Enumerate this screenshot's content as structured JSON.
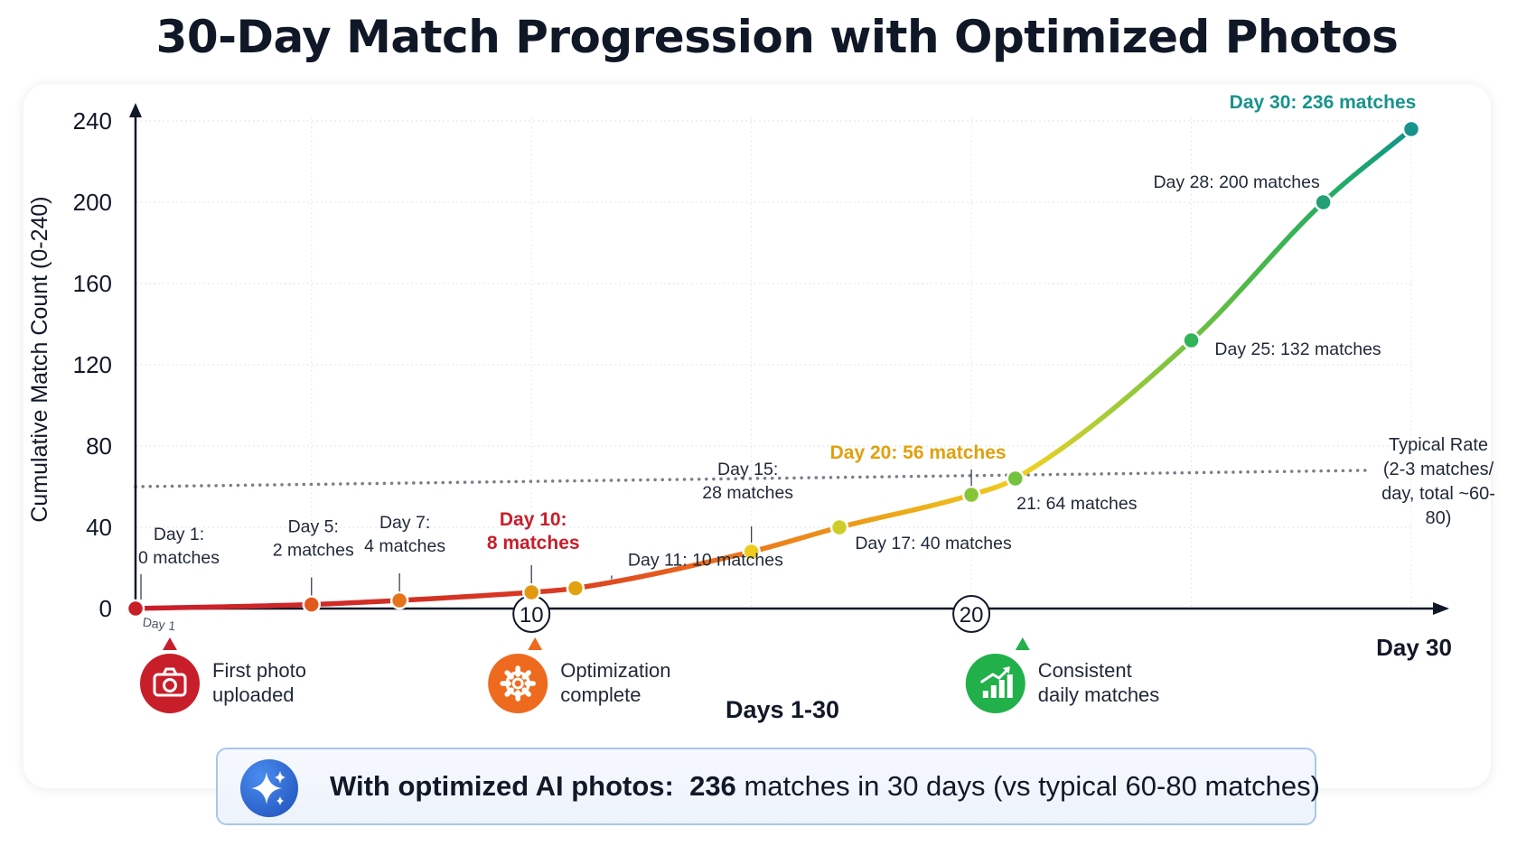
{
  "title": "30-Day Match Progression with Optimized Photos",
  "chart_data": {
    "type": "line",
    "title": "30-Day Match Progression with Optimized Photos",
    "xlabel": "Days 1-30",
    "ylabel": "Cumulative Match Count (0-240)",
    "xlim": [
      1,
      30
    ],
    "ylim": [
      0,
      240
    ],
    "y_ticks": [
      0,
      40,
      80,
      120,
      160,
      200,
      240
    ],
    "x_ticks": [
      {
        "x": 1,
        "label": "Day 1"
      },
      {
        "x": 10,
        "label": "10"
      },
      {
        "x": 20,
        "label": "20"
      },
      {
        "x": 30,
        "label": "Day 30"
      }
    ],
    "grid": true,
    "series": [
      {
        "values": [
          {
            "x": 1,
            "y": 0
          },
          {
            "x": 5,
            "y": 2
          },
          {
            "x": 7,
            "y": 4
          },
          {
            "x": 10,
            "y": 8
          },
          {
            "x": 11,
            "y": 10
          },
          {
            "x": 15,
            "y": 28
          },
          {
            "x": 17,
            "y": 40
          },
          {
            "x": 20,
            "y": 56
          },
          {
            "x": 21,
            "y": 64
          },
          {
            "x": 25,
            "y": 132
          },
          {
            "x": 28,
            "y": 200
          },
          {
            "x": 30,
            "y": 236
          }
        ]
      }
    ],
    "point_labels": [
      {
        "x": 1,
        "lines": [
          "Day 1:",
          "0 matches"
        ]
      },
      {
        "x": 5,
        "lines": [
          "Day 5:",
          "2 matches"
        ]
      },
      {
        "x": 7,
        "lines": [
          "Day 7:",
          "4 matches"
        ]
      },
      {
        "x": 10,
        "lines": [
          "Day 10:",
          "8 matches"
        ],
        "highlight": "#c81e2a"
      },
      {
        "x": 11,
        "lines": [
          "Day 11: 10 matches"
        ]
      },
      {
        "x": 15,
        "lines": [
          "Day 15:",
          "28 matches"
        ]
      },
      {
        "x": 17,
        "lines": [
          "Day 17: 40 matches"
        ]
      },
      {
        "x": 20,
        "lines": [
          "Day 20: 56 matches"
        ],
        "highlight": "#e0a00e"
      },
      {
        "x": 21,
        "lines": [
          "21: 64 matches"
        ]
      },
      {
        "x": 25,
        "lines": [
          "Day 25: 132 matches"
        ]
      },
      {
        "x": 28,
        "lines": [
          "Day 28: 200 matches"
        ]
      },
      {
        "x": 30,
        "lines": [
          "Day 30: 236 matches"
        ],
        "highlight": "#17938c"
      }
    ],
    "reference_line": {
      "y_start": 60,
      "y_end": 68,
      "style": "dotted",
      "label": [
        "Typical Rate",
        "(2-3 matches/",
        "day, total ~60-",
        "80)"
      ]
    },
    "line_colors": [
      "#c81e2a",
      "#e8641c",
      "#e0a00e",
      "#f0d020",
      "#7fc43a",
      "#2eb35a",
      "#17938c"
    ]
  },
  "milestones": [
    {
      "x": 1,
      "icon": "camera-icon",
      "color": "#c81e2a",
      "lines": [
        "First photo",
        "uploaded"
      ]
    },
    {
      "x": 10,
      "icon": "gear-icon",
      "color": "#ee6a1e",
      "lines": [
        "Optimization",
        "complete"
      ]
    },
    {
      "x": 21,
      "icon": "bar-chart-icon",
      "color": "#22b04a",
      "lines": [
        "Consistent",
        "daily matches"
      ]
    }
  ],
  "summary": {
    "icon": "sparkle-icon",
    "lead": "With optimized AI photos:",
    "count": "236",
    "rest": "matches in 30 days (vs typical 60-80 matches)"
  }
}
